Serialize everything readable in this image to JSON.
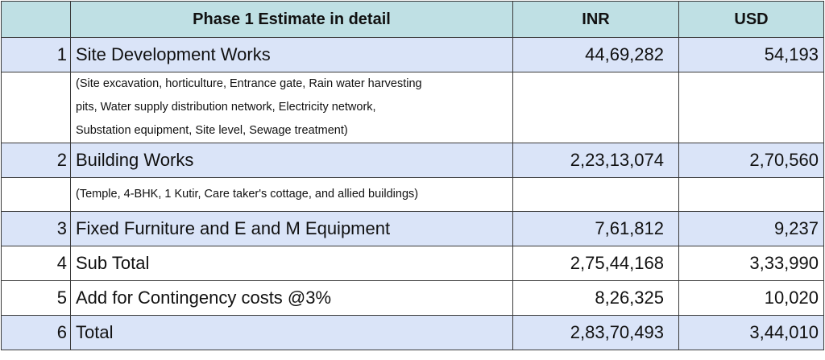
{
  "header": {
    "title": "Phase 1 Estimate in detail",
    "inr": "INR",
    "usd": "USD"
  },
  "rows": [
    {
      "no": "1",
      "item": "Site Development Works",
      "inr": "44,69,282",
      "usd": "54,193"
    },
    {
      "no": "2",
      "item": "Building Works",
      "inr": "2,23,13,074",
      "usd": "2,70,560"
    },
    {
      "no": "3",
      "item": "Fixed Furniture and E and M Equipment",
      "inr": "7,61,812",
      "usd": "9,237"
    },
    {
      "no": "4",
      "item": "Sub Total",
      "inr": "2,75,44,168",
      "usd": "3,33,990"
    },
    {
      "no": "5",
      "item": "Add for Contingency costs @3%",
      "inr": "8,26,325",
      "usd": "10,020"
    },
    {
      "no": "6",
      "item": "Total",
      "inr": "2,83,70,493",
      "usd": "3,44,010"
    }
  ],
  "details": {
    "site": [
      "(Site excavation, horticulture, Entrance gate, Rain water harvesting",
      "pits, Water supply distribution network, Electricity network,",
      "Substation equipment, Site level, Sewage treatment)"
    ],
    "building": "(Temple, 4-BHK, 1 Kutir, Care taker's cottage, and allied buildings)"
  }
}
